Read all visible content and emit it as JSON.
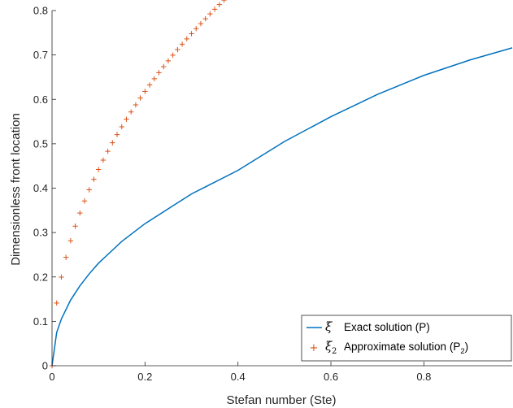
{
  "chart_data": {
    "type": "line",
    "xlabel": "Stefan number (Ste)",
    "ylabel": "Dimensionless front location",
    "xlim": [
      0,
      0.99
    ],
    "ylim": [
      0,
      0.8
    ],
    "xticks": [
      "0",
      "0.2",
      "0.4",
      "0.6",
      "0.8"
    ],
    "yticks": [
      "0",
      "0.1",
      "0.2",
      "0.3",
      "0.4",
      "0.5",
      "0.6",
      "0.7",
      "0.8"
    ],
    "grid": false,
    "legend_position": "bottom-right",
    "series": [
      {
        "name": "Exact solution (P)",
        "symbol": "ξ",
        "style": "line",
        "color": "#0072BD",
        "x": [
          0,
          0.01,
          0.02,
          0.04,
          0.06,
          0.08,
          0.1,
          0.15,
          0.2,
          0.3,
          0.4,
          0.5,
          0.6,
          0.7,
          0.8,
          0.9,
          0.99
        ],
        "y": [
          0,
          0.075,
          0.105,
          0.148,
          0.18,
          0.207,
          0.231,
          0.28,
          0.32,
          0.387,
          0.44,
          0.505,
          0.561,
          0.611,
          0.654,
          0.689,
          0.716
        ]
      },
      {
        "name": "Approximate solution (P2)",
        "name_main": "Approximate solution (P",
        "name_sub": "2",
        "name_end": ")",
        "symbol": "ξ",
        "symbol_sub": "2",
        "style": "markers",
        "marker": "+",
        "color": "#D95319",
        "x_start": 0,
        "x_step": 0.01,
        "count": 100,
        "y_formula": "sqrt(2*Ste)*(1 - 0.115*Ste)"
      }
    ]
  }
}
